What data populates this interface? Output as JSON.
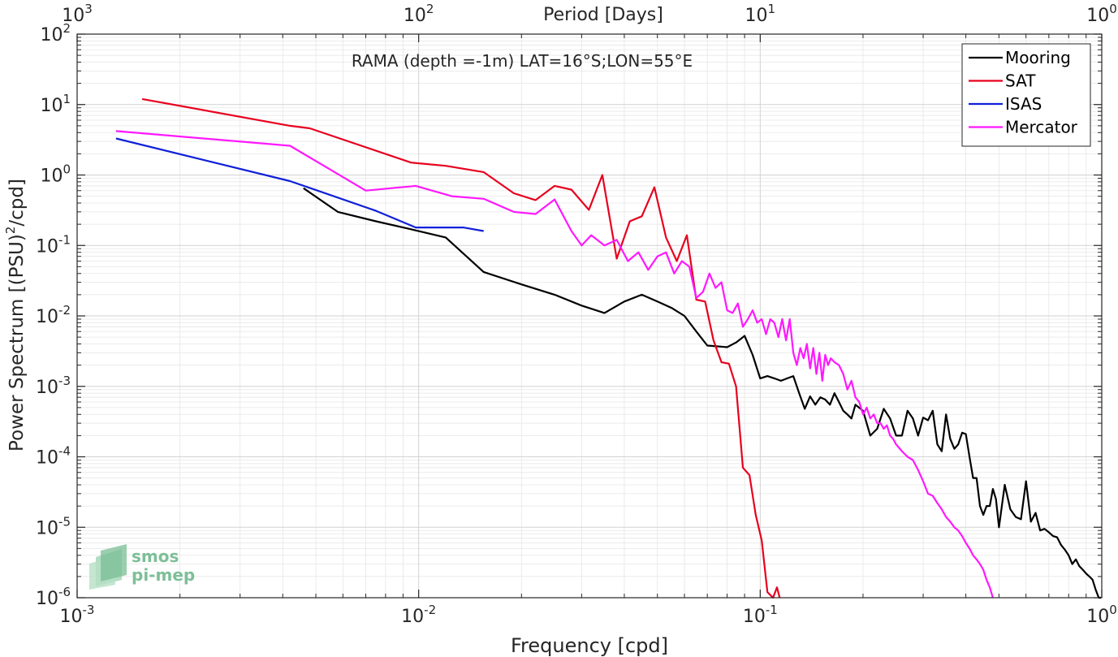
{
  "chart_data": {
    "type": "line",
    "title": "RAMA (depth =-1m) LAT=16°S;LON=55°E",
    "xlabel": "Frequency [cpd]",
    "ylabel": "Power Spectrum [(PSU)",
    "ylabel_sup": "2",
    "ylabel_tail": "/cpd]",
    "top_xlabel": "Period [Days]",
    "x_scale": "log",
    "y_scale": "log",
    "xlim": [
      0.001,
      1
    ],
    "ylim": [
      1e-06,
      100
    ],
    "grid": true,
    "minor_grid": true,
    "legend_position": "top-right",
    "x_ticks": [
      0.001,
      0.01,
      0.1,
      1
    ],
    "x_tick_labels": [
      {
        "base": "10",
        "exp": "-3"
      },
      {
        "base": "10",
        "exp": "-2"
      },
      {
        "base": "10",
        "exp": "-1"
      },
      {
        "base": "10",
        "exp": "0"
      }
    ],
    "top_x_ticks": [
      0.001,
      0.01,
      0.1,
      1
    ],
    "top_x_tick_labels": [
      {
        "base": "10",
        "exp": "3"
      },
      {
        "base": "10",
        "exp": "2"
      },
      {
        "base": "10",
        "exp": "1"
      },
      {
        "base": "10",
        "exp": "0"
      }
    ],
    "y_ticks": [
      1e-06,
      1e-05,
      0.0001,
      0.001,
      0.01,
      0.1,
      1,
      10,
      100
    ],
    "y_tick_labels": [
      {
        "base": "10",
        "exp": "-6"
      },
      {
        "base": "10",
        "exp": "-5"
      },
      {
        "base": "10",
        "exp": "-4"
      },
      {
        "base": "10",
        "exp": "-3"
      },
      {
        "base": "10",
        "exp": "-2"
      },
      {
        "base": "10",
        "exp": "-1"
      },
      {
        "base": "10",
        "exp": "0"
      },
      {
        "base": "10",
        "exp": "1"
      },
      {
        "base": "10",
        "exp": "2"
      }
    ],
    "series": [
      {
        "name": "Mooring",
        "color": "#000000",
        "x": [
          0.0046,
          0.0058,
          0.0075,
          0.0095,
          0.012,
          0.0155,
          0.02,
          0.025,
          0.03,
          0.035,
          0.04,
          0.045,
          0.05,
          0.055,
          0.06,
          0.065,
          0.07,
          0.075,
          0.08,
          0.085,
          0.09,
          0.095,
          0.1,
          0.105,
          0.11,
          0.115,
          0.12,
          0.125,
          0.13,
          0.135,
          0.14,
          0.145,
          0.15,
          0.155,
          0.16,
          0.165,
          0.17,
          0.175,
          0.18,
          0.185,
          0.19,
          0.2,
          0.21,
          0.22,
          0.23,
          0.24,
          0.25,
          0.26,
          0.27,
          0.28,
          0.29,
          0.3,
          0.31,
          0.32,
          0.33,
          0.34,
          0.35,
          0.36,
          0.37,
          0.38,
          0.39,
          0.4,
          0.41,
          0.42,
          0.43,
          0.44,
          0.45,
          0.46,
          0.47,
          0.48,
          0.49,
          0.5,
          0.52,
          0.54,
          0.56,
          0.58,
          0.6,
          0.62,
          0.64,
          0.66,
          0.68,
          0.7,
          0.72,
          0.74,
          0.76,
          0.78,
          0.8,
          0.82,
          0.84,
          0.86,
          0.88,
          0.9,
          0.92,
          0.94,
          0.96,
          0.98,
          0.995
        ],
        "y": [
          0.65,
          0.3,
          0.22,
          0.17,
          0.13,
          0.042,
          0.028,
          0.02,
          0.014,
          0.011,
          0.016,
          0.02,
          0.016,
          0.013,
          0.01,
          0.006,
          0.0038,
          0.0037,
          0.0036,
          0.0042,
          0.0052,
          0.0028,
          0.0013,
          0.0014,
          0.0013,
          0.0012,
          0.0013,
          0.0014,
          0.0008,
          0.00048,
          0.00072,
          0.00055,
          0.0007,
          0.00065,
          0.00055,
          0.0008,
          0.0006,
          0.00045,
          0.0004,
          0.00035,
          0.00055,
          0.00045,
          0.0002,
          0.00025,
          0.00048,
          0.00035,
          0.0002,
          0.0002,
          0.00045,
          0.00035,
          0.0002,
          0.00036,
          0.00033,
          0.00045,
          0.00015,
          0.00012,
          0.0004,
          0.00018,
          0.00013,
          0.00015,
          0.00022,
          0.00021,
          0.0001,
          5e-05,
          5e-05,
          2e-05,
          1.5e-05,
          2e-05,
          2e-05,
          3.5e-05,
          2.5e-05,
          1e-05,
          4e-05,
          1.8e-05,
          1.4e-05,
          1.3e-05,
          4.5e-05,
          1.2e-05,
          1.6e-05,
          9e-06,
          9.5e-06,
          8.5e-06,
          7.5e-06,
          7.2e-06,
          5.6e-06,
          4.8e-06,
          4e-06,
          3e-06,
          3.5e-06,
          2.8e-06,
          2.5e-06,
          2.2e-06,
          2e-06,
          1.8e-06,
          1.3e-06,
          1e-06,
          8e-07
        ]
      },
      {
        "name": "SAT",
        "color": "#e8001e",
        "x": [
          0.00155,
          0.0042,
          0.0048,
          0.0095,
          0.012,
          0.0155,
          0.019,
          0.022,
          0.025,
          0.028,
          0.0315,
          0.0345,
          0.038,
          0.0415,
          0.045,
          0.049,
          0.053,
          0.057,
          0.061,
          0.065,
          0.069,
          0.073,
          0.077,
          0.081,
          0.085,
          0.089,
          0.093,
          0.097,
          0.101,
          0.105,
          0.109,
          0.112,
          0.114
        ],
        "y": [
          12,
          5,
          4.6,
          1.5,
          1.35,
          1.1,
          0.55,
          0.44,
          0.7,
          0.62,
          0.32,
          1.0,
          0.065,
          0.22,
          0.26,
          0.67,
          0.13,
          0.06,
          0.14,
          0.017,
          0.016,
          0.0045,
          0.0022,
          0.0021,
          0.001,
          7e-05,
          5.5e-05,
          1.5e-05,
          6.5e-06,
          1.2e-06,
          9e-07,
          1.4e-06,
          8e-07
        ]
      },
      {
        "name": "ISAS",
        "color": "#1020d8",
        "x": [
          0.0013,
          0.0042,
          0.0075,
          0.0098,
          0.0135,
          0.0155
        ],
        "y": [
          3.3,
          0.82,
          0.31,
          0.18,
          0.18,
          0.16
        ]
      },
      {
        "name": "Mercator",
        "color": "#ff18ff",
        "x": [
          0.0013,
          0.0042,
          0.0055,
          0.007,
          0.0098,
          0.0125,
          0.0155,
          0.019,
          0.022,
          0.025,
          0.028,
          0.03,
          0.032,
          0.035,
          0.038,
          0.041,
          0.044,
          0.047,
          0.05,
          0.053,
          0.056,
          0.059,
          0.062,
          0.065,
          0.068,
          0.071,
          0.074,
          0.077,
          0.08,
          0.083,
          0.086,
          0.089,
          0.092,
          0.095,
          0.098,
          0.101,
          0.104,
          0.107,
          0.11,
          0.113,
          0.116,
          0.119,
          0.122,
          0.125,
          0.128,
          0.131,
          0.134,
          0.137,
          0.14,
          0.143,
          0.146,
          0.149,
          0.152,
          0.155,
          0.158,
          0.161,
          0.165,
          0.17,
          0.175,
          0.18,
          0.185,
          0.19,
          0.195,
          0.2,
          0.205,
          0.21,
          0.215,
          0.22,
          0.225,
          0.23,
          0.235,
          0.24,
          0.245,
          0.25,
          0.26,
          0.27,
          0.28,
          0.29,
          0.3,
          0.31,
          0.32,
          0.33,
          0.34,
          0.35,
          0.36,
          0.37,
          0.38,
          0.39,
          0.4,
          0.41,
          0.42,
          0.43,
          0.44,
          0.45,
          0.46,
          0.47,
          0.48
        ],
        "y": [
          4.2,
          2.6,
          1.2,
          0.6,
          0.7,
          0.5,
          0.46,
          0.3,
          0.28,
          0.45,
          0.16,
          0.1,
          0.14,
          0.1,
          0.12,
          0.06,
          0.08,
          0.045,
          0.07,
          0.08,
          0.04,
          0.06,
          0.05,
          0.018,
          0.022,
          0.04,
          0.025,
          0.03,
          0.012,
          0.011,
          0.015,
          0.007,
          0.009,
          0.012,
          0.008,
          0.009,
          0.0055,
          0.009,
          0.008,
          0.005,
          0.009,
          0.0045,
          0.009,
          0.003,
          0.002,
          0.0035,
          0.0025,
          0.004,
          0.0018,
          0.0035,
          0.0015,
          0.003,
          0.0012,
          0.0028,
          0.002,
          0.0025,
          0.0022,
          0.002,
          0.0015,
          0.0009,
          0.0012,
          0.0007,
          0.0006,
          0.0004,
          0.0005,
          0.00035,
          0.0004,
          0.0003,
          0.0003,
          0.00025,
          0.00028,
          0.0002,
          0.00018,
          0.00015,
          0.00012,
          0.0001,
          9e-05,
          6.5e-05,
          4.5e-05,
          3e-05,
          2.8e-05,
          2.2e-05,
          1.8e-05,
          1.4e-05,
          1.2e-05,
          1e-05,
          9e-06,
          7.5e-06,
          6e-06,
          5e-06,
          4e-06,
          3.5e-06,
          3e-06,
          2.5e-06,
          1.8e-06,
          1.4e-06,
          9e-07
        ]
      }
    ]
  },
  "logo": {
    "line1": "smos",
    "line2": "pi-mep"
  }
}
